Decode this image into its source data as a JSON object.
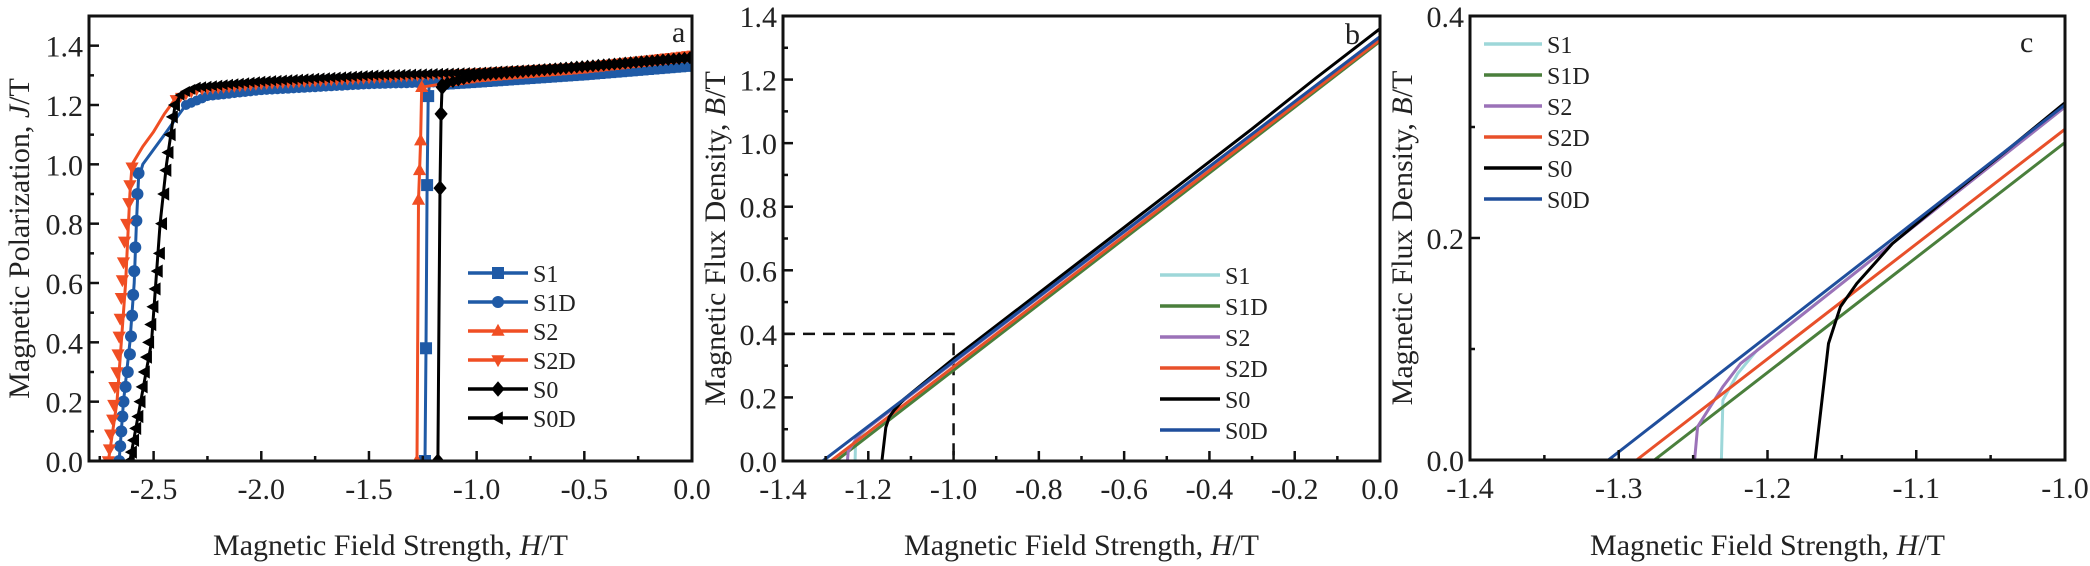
{
  "chart_data": [
    {
      "id": "a",
      "type": "line",
      "panel_label": "a",
      "title": "",
      "xlabel_main": "Magnetic Field Strength, ",
      "xlabel_italic": "H",
      "xlabel_unit": "/T",
      "ylabel_main": "Magnetic Polarization, ",
      "ylabel_italic": "J",
      "ylabel_unit": "/T",
      "xlim": [
        -2.8,
        0.0
      ],
      "ylim": [
        0.0,
        1.5
      ],
      "xticks": [
        -2.5,
        -2.0,
        -1.5,
        -1.0,
        -0.5,
        0.0
      ],
      "xtick_labels": [
        "-2.5",
        "-2.0",
        "-1.5",
        "-1.0",
        "-0.5",
        "0.0"
      ],
      "xminor": [
        -2.75,
        -2.25,
        -1.75,
        -1.25,
        -0.75,
        -0.25
      ],
      "yticks": [
        0.0,
        0.2,
        0.4,
        0.6,
        0.8,
        1.0,
        1.2,
        1.4
      ],
      "ytick_labels": [
        "0.0",
        "0.2",
        "0.4",
        "0.6",
        "0.8",
        "1.0",
        "1.2",
        "1.4"
      ],
      "yminor": [
        0.1,
        0.3,
        0.5,
        0.7,
        0.9,
        1.1,
        1.3
      ],
      "grid": false,
      "legend_position": "lower-right",
      "series": [
        {
          "name": "S1",
          "color": "#1f5aa6",
          "marker": "square",
          "x": [
            -1.24,
            -1.235,
            -1.23,
            -1.225,
            -1.22,
            -1.0,
            -0.5,
            0.0
          ],
          "y": [
            0.0,
            0.38,
            0.93,
            1.23,
            1.265,
            1.275,
            1.3,
            1.33
          ],
          "markers_x": [
            -1.24,
            -1.235,
            -1.23,
            -1.225
          ],
          "markers_y": [
            0.0,
            0.38,
            0.93,
            1.23
          ]
        },
        {
          "name": "S1D",
          "color": "#1f5aa6",
          "marker": "circle",
          "x": [
            -2.66,
            -2.64,
            -2.61,
            -2.59,
            -2.58,
            -2.57,
            -2.55,
            -2.5,
            -2.45,
            -2.4,
            -2.35,
            -2.25,
            -2.0,
            -1.5,
            -1.0,
            -0.5,
            0.0
          ],
          "y": [
            0.0,
            0.2,
            0.4,
            0.6,
            0.8,
            0.95,
            1.0,
            1.05,
            1.1,
            1.15,
            1.2,
            1.23,
            1.25,
            1.27,
            1.28,
            1.3,
            1.33
          ],
          "markers_x": [
            -2.66,
            -2.655,
            -2.65,
            -2.645,
            -2.64,
            -2.63,
            -2.62,
            -2.61,
            -2.605,
            -2.6,
            -2.595,
            -2.59,
            -2.585,
            -2.58,
            -2.575,
            -2.57
          ],
          "markers_y": [
            0.0,
            0.05,
            0.1,
            0.15,
            0.2,
            0.25,
            0.3,
            0.36,
            0.42,
            0.49,
            0.56,
            0.64,
            0.72,
            0.81,
            0.9,
            0.97
          ]
        },
        {
          "name": "S2",
          "color": "#f04e23",
          "marker": "triangle-up",
          "x": [
            -1.277,
            -1.27,
            -1.265,
            -1.26,
            -1.255,
            -1.0,
            -0.5,
            0.0
          ],
          "y": [
            0.0,
            0.88,
            0.98,
            1.08,
            1.26,
            1.29,
            1.32,
            1.36
          ],
          "markers_x": [
            -1.277,
            -1.27,
            -1.265,
            -1.26,
            -1.255
          ],
          "markers_y": [
            0.0,
            0.88,
            0.98,
            1.08,
            1.26
          ]
        },
        {
          "name": "S2D",
          "color": "#f04e23",
          "marker": "triangle-down",
          "x": [
            -2.71,
            -2.69,
            -2.67,
            -2.65,
            -2.63,
            -2.61,
            -2.6,
            -2.55,
            -2.5,
            -2.45,
            -2.4,
            -2.3,
            -2.0,
            -1.5,
            -1.0,
            -0.5,
            0.0
          ],
          "y": [
            0.0,
            0.1,
            0.2,
            0.4,
            0.6,
            0.9,
            1.0,
            1.06,
            1.11,
            1.17,
            1.22,
            1.25,
            1.27,
            1.29,
            1.31,
            1.33,
            1.37
          ],
          "markers_x": [
            -2.71,
            -2.705,
            -2.7,
            -2.69,
            -2.685,
            -2.68,
            -2.67,
            -2.665,
            -2.66,
            -2.655,
            -2.65,
            -2.645,
            -2.64,
            -2.635,
            -2.625,
            -2.615,
            -2.61,
            -2.6
          ],
          "markers_y": [
            0.0,
            0.04,
            0.09,
            0.14,
            0.19,
            0.25,
            0.3,
            0.36,
            0.42,
            0.48,
            0.55,
            0.61,
            0.67,
            0.74,
            0.8,
            0.87,
            0.93,
            0.99
          ]
        },
        {
          "name": "S0",
          "color": "#000000",
          "marker": "diamond",
          "x": [
            -1.18,
            -1.175,
            -1.17,
            -1.165,
            -1.16,
            -1.0,
            -0.5,
            0.0
          ],
          "y": [
            0.0,
            0.5,
            0.92,
            1.17,
            1.27,
            1.3,
            1.33,
            1.36
          ],
          "markers_x": [
            -1.18,
            -1.17,
            -1.165,
            -1.16
          ],
          "markers_y": [
            0.0,
            0.92,
            1.17,
            1.26
          ]
        },
        {
          "name": "S0D",
          "color": "#000000",
          "marker": "triangle-left",
          "x": [
            -2.61,
            -2.56,
            -2.51,
            -2.49,
            -2.47,
            -2.455,
            -2.44,
            -2.42,
            -2.4,
            -2.37,
            -2.3,
            -2.0,
            -1.5,
            -1.0,
            -0.5,
            0.0
          ],
          "y": [
            0.0,
            0.2,
            0.4,
            0.6,
            0.8,
            0.9,
            1.0,
            1.1,
            1.2,
            1.24,
            1.26,
            1.28,
            1.3,
            1.31,
            1.33,
            1.36
          ],
          "markers_x": [
            -2.61,
            -2.6,
            -2.59,
            -2.58,
            -2.57,
            -2.56,
            -2.55,
            -2.54,
            -2.53,
            -2.52,
            -2.51,
            -2.5,
            -2.49,
            -2.48,
            -2.47,
            -2.46,
            -2.45,
            -2.44,
            -2.43,
            -2.42,
            -2.41,
            -2.4
          ],
          "markers_y": [
            0.0,
            0.03,
            0.07,
            0.11,
            0.15,
            0.2,
            0.25,
            0.3,
            0.35,
            0.4,
            0.46,
            0.52,
            0.58,
            0.64,
            0.7,
            0.8,
            0.9,
            0.98,
            1.04,
            1.1,
            1.16,
            1.2
          ]
        }
      ]
    },
    {
      "id": "b",
      "type": "line",
      "panel_label": "b",
      "title": "",
      "xlabel_main": "Magnetic Field Strength, ",
      "xlabel_italic": "H",
      "xlabel_unit": "/T",
      "ylabel_main": "Magnetic Flux Density, ",
      "ylabel_italic": "B",
      "ylabel_unit": "/T",
      "xlim": [
        -1.4,
        0.0
      ],
      "ylim": [
        0.0,
        1.4
      ],
      "xticks": [
        -1.4,
        -1.2,
        -1.0,
        -0.8,
        -0.6,
        -0.4,
        -0.2,
        0.0
      ],
      "xtick_labels": [
        "-1.4",
        "-1.2",
        "-1.0",
        "-0.8",
        "-0.6",
        "-0.4",
        "-0.2",
        "0.0"
      ],
      "xminor": [
        -1.3,
        -1.1,
        -0.9,
        -0.7,
        -0.5,
        -0.3,
        -0.1
      ],
      "yticks": [
        0.0,
        0.2,
        0.4,
        0.6,
        0.8,
        1.0,
        1.2,
        1.4
      ],
      "ytick_labels": [
        "0.0",
        "0.2",
        "0.4",
        "0.6",
        "0.8",
        "1.0",
        "1.2",
        "1.4"
      ],
      "yminor": [
        0.1,
        0.3,
        0.5,
        0.7,
        0.9,
        1.1,
        1.3
      ],
      "grid": false,
      "legend_position": "lower-right",
      "annotation": {
        "type": "dashed-box",
        "x_range": [
          -1.4,
          -1.0
        ],
        "y_range": [
          0.0,
          0.4
        ]
      },
      "series": [
        {
          "name": "S1",
          "color": "#9dd7d9",
          "x": [
            -1.231,
            -1.23,
            -1.22,
            -1.207,
            0.0
          ],
          "y": [
            0.0,
            0.054,
            0.078,
            0.099,
            1.335
          ]
        },
        {
          "name": "S1D",
          "color": "#4a7f3c",
          "x": [
            -1.276,
            0.0
          ],
          "y": [
            0.0,
            1.32
          ]
        },
        {
          "name": "S2",
          "color": "#9b72b8",
          "x": [
            -1.249,
            -1.247,
            -1.23,
            -1.218,
            0.0
          ],
          "y": [
            0.0,
            0.03,
            0.066,
            0.087,
            1.335
          ]
        },
        {
          "name": "S2D",
          "color": "#e8502a",
          "x": [
            -1.288,
            0.0
          ],
          "y": [
            0.0,
            1.325
          ]
        },
        {
          "name": "S0",
          "color": "#000000",
          "x": [
            -1.168,
            -1.159,
            -1.151,
            -1.14,
            -1.116,
            -1.0,
            -0.6,
            -0.3,
            -0.15,
            0.0
          ],
          "y": [
            0.0,
            0.105,
            0.138,
            0.159,
            0.195,
            0.322,
            0.735,
            1.045,
            1.205,
            1.36
          ]
        },
        {
          "name": "S0D",
          "color": "#1f4e9c",
          "x": [
            -1.307,
            0.0
          ],
          "y": [
            0.0,
            1.335
          ]
        }
      ]
    },
    {
      "id": "c",
      "type": "line",
      "panel_label": "c",
      "title": "",
      "xlabel_main": "Magnetic Field Strength, ",
      "xlabel_italic": "H",
      "xlabel_unit": "/T",
      "ylabel_main": "Magnetic Flux Density, ",
      "ylabel_italic": "B",
      "ylabel_unit": "/T",
      "xlim": [
        -1.4,
        -1.0
      ],
      "ylim": [
        0.0,
        0.4
      ],
      "xticks": [
        -1.4,
        -1.3,
        -1.2,
        -1.1,
        -1.0
      ],
      "xtick_labels": [
        "-1.4",
        "-1.3",
        "-1.2",
        "-1.1",
        "-1.0"
      ],
      "xminor": [
        -1.35,
        -1.25,
        -1.15,
        -1.05
      ],
      "yticks": [
        0.0,
        0.2,
        0.4
      ],
      "ytick_labels": [
        "0.0",
        "0.2",
        "0.4"
      ],
      "yminor": [
        0.1,
        0.3
      ],
      "grid": false,
      "legend_position": "top-left",
      "series": [
        {
          "name": "S1",
          "color": "#9dd7d9",
          "x": [
            -1.231,
            -1.23,
            -1.22,
            -1.207,
            -1.0
          ],
          "y": [
            0.0,
            0.054,
            0.078,
            0.099,
            0.318
          ]
        },
        {
          "name": "S1D",
          "color": "#4a7f3c",
          "x": [
            -1.276,
            -1.0
          ],
          "y": [
            0.0,
            0.286
          ]
        },
        {
          "name": "S2",
          "color": "#9b72b8",
          "x": [
            -1.249,
            -1.247,
            -1.23,
            -1.218,
            -1.0
          ],
          "y": [
            0.0,
            0.03,
            0.066,
            0.087,
            0.318
          ]
        },
        {
          "name": "S2D",
          "color": "#e8502a",
          "x": [
            -1.288,
            -1.0
          ],
          "y": [
            0.0,
            0.298
          ]
        },
        {
          "name": "S0",
          "color": "#000000",
          "x": [
            -1.168,
            -1.159,
            -1.151,
            -1.14,
            -1.116,
            -1.08,
            -1.04,
            -1.0
          ],
          "y": [
            0.0,
            0.105,
            0.138,
            0.159,
            0.195,
            0.235,
            0.278,
            0.322
          ]
        },
        {
          "name": "S0D",
          "color": "#1f4e9c",
          "x": [
            -1.307,
            -1.0
          ],
          "y": [
            0.0,
            0.32
          ]
        }
      ]
    }
  ]
}
